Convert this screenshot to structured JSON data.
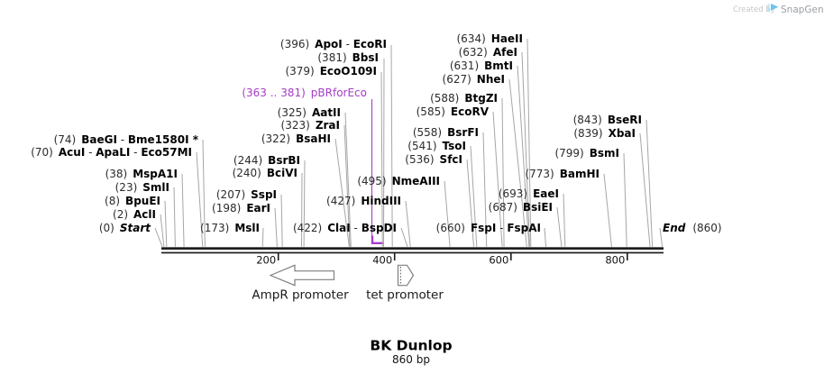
{
  "watermark": {
    "created_by": "Created by",
    "brand": "SnapGene"
  },
  "map": {
    "title": "BK Dunlop",
    "length_label": "860 bp",
    "sep": " - ",
    "sites": [
      {
        "pos": "(0)",
        "names": [
          "Start"
        ],
        "style": "terminus"
      },
      {
        "pos": "(2)",
        "names": [
          "AclI"
        ]
      },
      {
        "pos": "(8)",
        "names": [
          "BpuEI"
        ]
      },
      {
        "pos": "(23)",
        "names": [
          "SmlI"
        ]
      },
      {
        "pos": "(38)",
        "names": [
          "MspA1I"
        ]
      },
      {
        "pos": "(70)",
        "names": [
          "AcuI",
          "ApaLI",
          "Eco57MI"
        ]
      },
      {
        "pos": "(74)",
        "names": [
          "BaeGI",
          "Bme1580I *"
        ]
      },
      {
        "pos": "(173)",
        "names": [
          "MslI"
        ]
      },
      {
        "pos": "(198)",
        "names": [
          "EarI"
        ]
      },
      {
        "pos": "(207)",
        "names": [
          "SspI"
        ]
      },
      {
        "pos": "(240)",
        "names": [
          "BciVI"
        ]
      },
      {
        "pos": "(244)",
        "names": [
          "BsrBI"
        ]
      },
      {
        "pos": "(322)",
        "names": [
          "BsaHI"
        ]
      },
      {
        "pos": "(323)",
        "names": [
          "ZraI"
        ]
      },
      {
        "pos": "(325)",
        "names": [
          "AatII"
        ]
      },
      {
        "pos": "(363 .. 381)",
        "names": [
          "pBRforEco"
        ],
        "type": "primer"
      },
      {
        "pos": "(379)",
        "names": [
          "EcoO109I"
        ]
      },
      {
        "pos": "(381)",
        "names": [
          "BbsI"
        ]
      },
      {
        "pos": "(396)",
        "names": [
          "ApoI",
          "EcoRI"
        ]
      },
      {
        "pos": "(422)",
        "names": [
          "ClaI",
          "BspDI"
        ]
      },
      {
        "pos": "(427)",
        "names": [
          "HindIII"
        ]
      },
      {
        "pos": "(495)",
        "names": [
          "NmeAIII"
        ]
      },
      {
        "pos": "(536)",
        "names": [
          "SfcI"
        ]
      },
      {
        "pos": "(541)",
        "names": [
          "TsoI"
        ]
      },
      {
        "pos": "(558)",
        "names": [
          "BsrFI"
        ]
      },
      {
        "pos": "(585)",
        "names": [
          "EcoRV"
        ]
      },
      {
        "pos": "(588)",
        "names": [
          "BtgZI"
        ]
      },
      {
        "pos": "(627)",
        "names": [
          "NheI"
        ]
      },
      {
        "pos": "(631)",
        "names": [
          "BmtI"
        ]
      },
      {
        "pos": "(632)",
        "names": [
          "AfeI"
        ]
      },
      {
        "pos": "(634)",
        "names": [
          "HaeII"
        ]
      },
      {
        "pos": "(660)",
        "names": [
          "FspI",
          "FspAI"
        ]
      },
      {
        "pos": "(687)",
        "names": [
          "BsiEI"
        ]
      },
      {
        "pos": "(693)",
        "names": [
          "EaeI"
        ]
      },
      {
        "pos": "(773)",
        "names": [
          "BamHI"
        ]
      },
      {
        "pos": "(799)",
        "names": [
          "BsmI"
        ]
      },
      {
        "pos": "(839)",
        "names": [
          "XbaI"
        ]
      },
      {
        "pos": "(843)",
        "names": [
          "BseRI"
        ]
      },
      {
        "pos": "(860)",
        "names": [
          "End"
        ],
        "style": "terminus",
        "pos_after": true
      }
    ],
    "ruler_ticks": [
      "200",
      "400",
      "600",
      "800"
    ],
    "features": [
      {
        "label": "AmpR promoter",
        "direction": "left"
      },
      {
        "label": "tet promoter",
        "direction": "right"
      }
    ]
  },
  "colors": {
    "primer_purple": "#a53ec6",
    "leader_gray": "#a6a6a6",
    "bar_black": "#1c1c1c",
    "snapgene_blue": "#6cc5e9",
    "watermark_gray": "#9aa0a5"
  }
}
